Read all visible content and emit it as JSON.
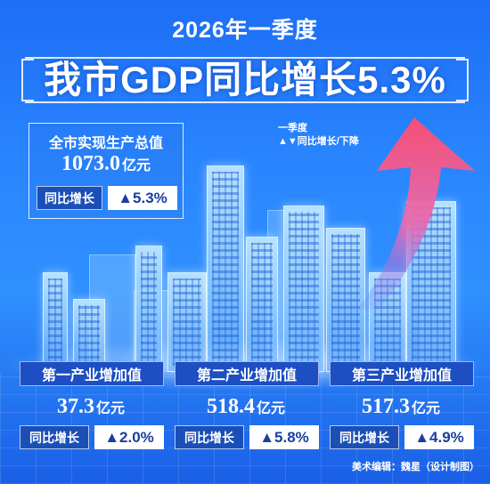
{
  "header": {
    "subtitle": "2026年一季度",
    "title": "我市GDP同比增长5.3%"
  },
  "summary": {
    "label": "全市实现生产总值",
    "value": "1073.0",
    "unit": "亿元",
    "growth_label": "同比增长",
    "growth_value": "▲5.3%"
  },
  "legend": {
    "line1": "一季度",
    "line2": "▲▼同比增长/下降"
  },
  "sectors": [
    {
      "title": "第一产业增加值",
      "value": "37.3",
      "unit": "亿元",
      "growth_label": "同比增长",
      "growth_value": "▲2.0%"
    },
    {
      "title": "第二产业增加值",
      "value": "518.4",
      "unit": "亿元",
      "growth_label": "同比增长",
      "growth_value": "▲5.8%"
    },
    {
      "title": "第三产业增加值",
      "value": "517.3",
      "unit": "亿元",
      "growth_label": "同比增长",
      "growth_value": "▲4.9%"
    }
  ],
  "credit": "美术编辑：魏星（设计制图）",
  "colors": {
    "background": "#2a86ff",
    "label_bg": "#1b4fb8",
    "arrow_start": "#ff4d6d",
    "arrow_end": "#6a7cff"
  }
}
